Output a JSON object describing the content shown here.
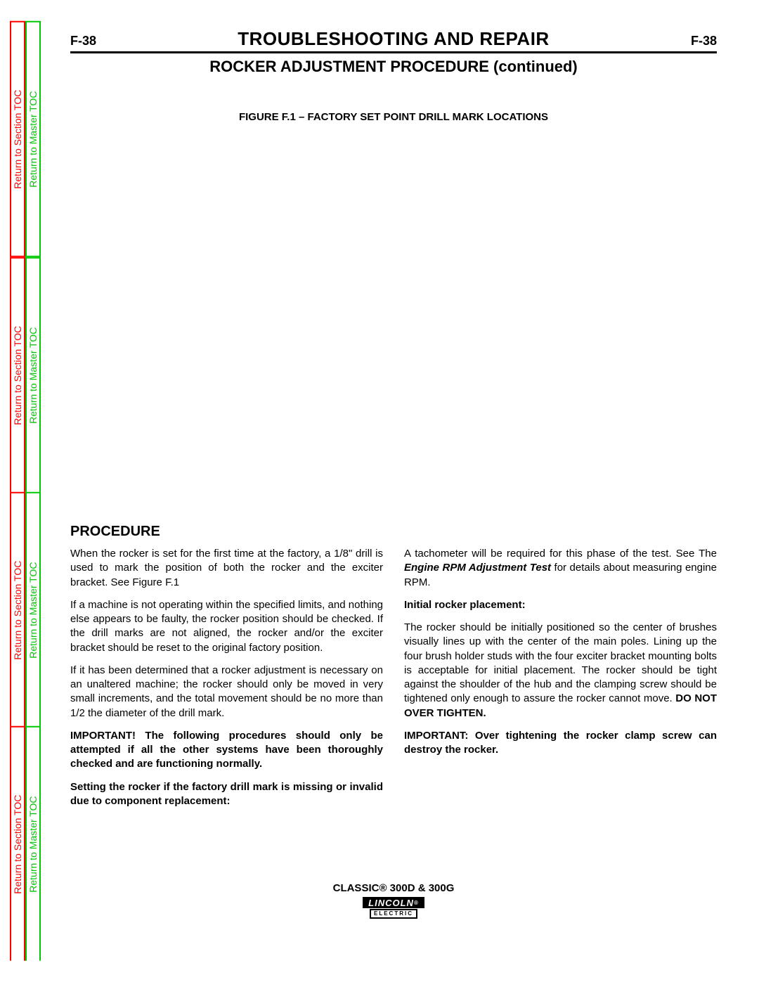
{
  "sideTabs": {
    "sectionLabel": "Return to Section TOC",
    "masterLabel": "Return to Master TOC",
    "sectionColor": "#ff0000",
    "masterColor": "#00c800",
    "repeatCount": 4
  },
  "header": {
    "pageLeft": "F-38",
    "title": "TROUBLESHOOTING AND REPAIR",
    "pageRight": "F-38",
    "subtitle": "ROCKER ADJUSTMENT PROCEDURE (continued)"
  },
  "figure": {
    "caption": "FIGURE F.1 – FACTORY SET POINT DRILL MARK LOCATIONS"
  },
  "procedure": {
    "heading": "PROCEDURE",
    "leftCol": {
      "p1": "When the rocker is set for the first time at the factory, a 1/8\" drill is used to mark the position of both the rocker and the exciter bracket. See Figure F.1",
      "p2": "If a machine is not operating within the specified limits, and nothing else appears to be faulty, the rocker position should be checked. If the drill marks are not aligned, the rocker and/or the exciter bracket should be reset to the original factory position.",
      "p3": "If it has been determined that a rocker adjustment is necessary on an unaltered machine; the rocker should only be moved in very small increments, and the total movement should be no more than 1/2 the diameter of the drill mark.",
      "p4": "IMPORTANT! The following procedures should only be attempted if all the other systems have been thoroughly checked and are functioning normally.",
      "p5": "Setting the rocker if the factory drill mark is missing or invalid due to component replacement:"
    },
    "rightCol": {
      "p1_pre": "A tachometer will be required for this phase of the test. See The ",
      "p1_em": "Engine RPM Adjustment Test",
      "p1_post": " for details about measuring engine RPM.",
      "s1": "Initial rocker placement:",
      "p2_pre": "The rocker should be initially positioned so the center of brushes visually lines up with the center of the main poles. Lining up the four brush holder studs with the four exciter bracket mounting bolts is acceptable for initial placement. The rocker should be tight against the shoulder of the hub and the clamping screw should be tightened only enough to assure the rocker cannot move. ",
      "p2_warn": "DO NOT OVER TIGHTEN.",
      "p3": "IMPORTANT: Over tightening the rocker clamp screw can destroy the rocker."
    }
  },
  "footer": {
    "model": "CLASSIC® 300D & 300G",
    "logoTop": "LINCOLN",
    "logoReg": "®",
    "logoBot": "ELECTRIC"
  }
}
